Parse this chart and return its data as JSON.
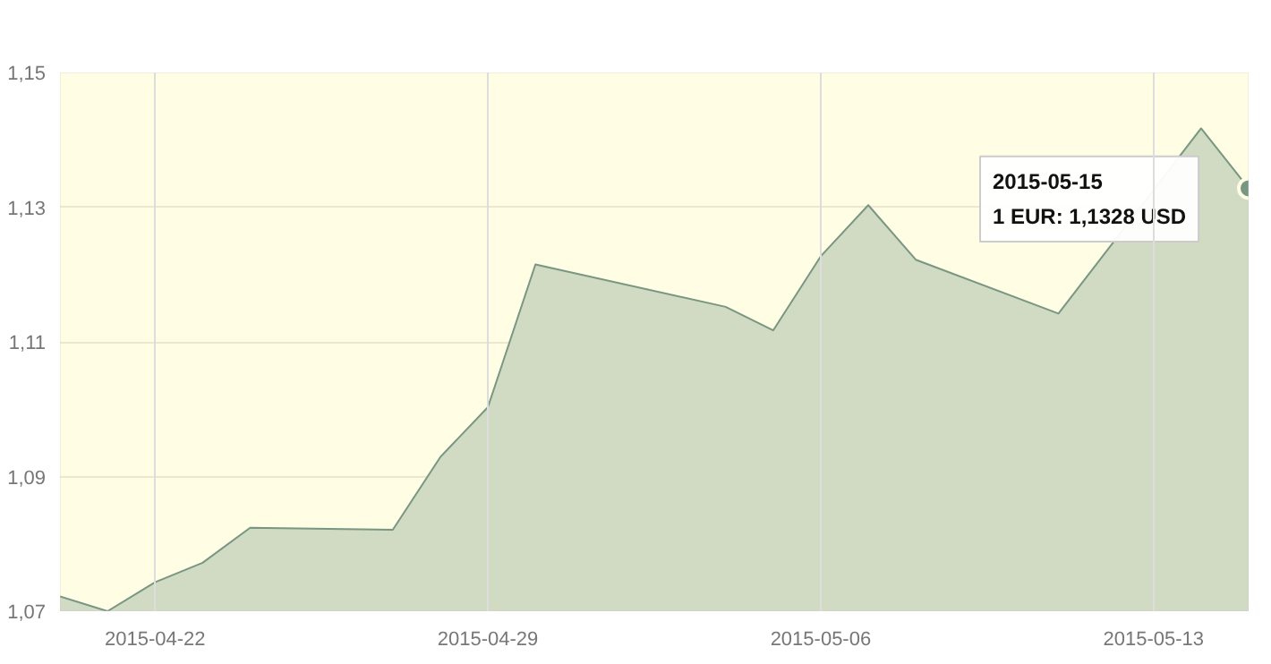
{
  "chart_data": {
    "type": "area",
    "x": [
      "2015-04-20",
      "2015-04-21",
      "2015-04-22",
      "2015-04-23",
      "2015-04-24",
      "2015-04-27",
      "2015-04-28",
      "2015-04-29",
      "2015-04-30",
      "2015-05-04",
      "2015-05-05",
      "2015-05-06",
      "2015-05-07",
      "2015-05-08",
      "2015-05-11",
      "2015-05-14",
      "2015-05-15"
    ],
    "series": [
      {
        "color": "#1e5560",
        "values": [
          1.0722,
          1.07,
          1.0743,
          1.0772,
          1.0824,
          1.0821,
          1.0929,
          1.1003,
          1.1215,
          1.1152,
          1.1117,
          1.1227,
          1.1303,
          1.1222,
          1.1142,
          1.1417,
          1.1328
        ]
      }
    ],
    "xlim": [
      "2015-04-20",
      "2015-05-15"
    ],
    "xticks": [
      "2015-04-22",
      "2015-04-29",
      "2015-05-06",
      "2015-05-13"
    ],
    "ylim": [
      1.07,
      1.15
    ],
    "yticks": [
      {
        "value": 1.07,
        "label": "1,07"
      },
      {
        "value": 1.09,
        "label": "1,09"
      },
      {
        "value": 1.11,
        "label": "1,11"
      },
      {
        "value": 1.13,
        "label": "1,13"
      },
      {
        "value": 1.15,
        "label": "1,15"
      }
    ],
    "grid": true,
    "annotations": [
      {
        "text": "2015-05-15\n1 EUR: 1,1328 USD",
        "x": "2015-05-15",
        "y": 1.1328
      }
    ]
  }
}
